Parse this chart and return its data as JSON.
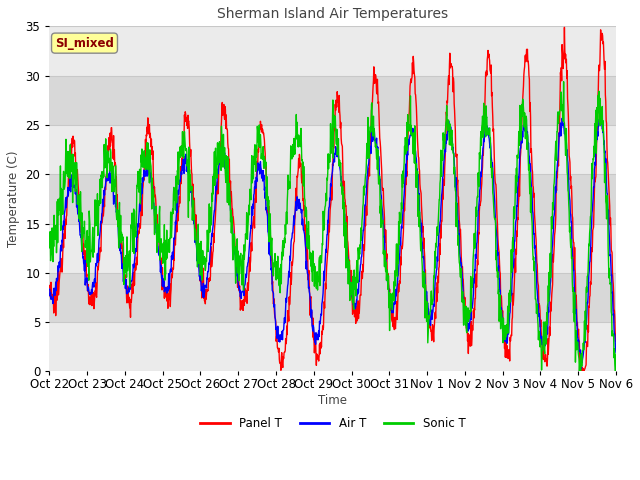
{
  "title": "Sherman Island Air Temperatures",
  "xlabel": "Time",
  "ylabel": "Temperature (C)",
  "ylim": [
    0,
    35
  ],
  "xlim": [
    0,
    360
  ],
  "background_color": "#ffffff",
  "plot_bg_light": "#f0f0f0",
  "plot_bg_dark": "#e0e0e0",
  "grid_color": "#d8d8d8",
  "x_tick_labels": [
    "Oct 22",
    "Oct 23",
    "Oct 24",
    "Oct 25",
    "Oct 26",
    "Oct 27",
    "Oct 28",
    "Oct 29",
    "Oct 30",
    "Oct 31",
    "Nov 1",
    "Nov 2",
    "Nov 3",
    "Nov 4",
    "Nov 5",
    "Nov 6"
  ],
  "x_tick_positions": [
    0,
    24,
    48,
    72,
    96,
    120,
    144,
    168,
    192,
    216,
    240,
    264,
    288,
    312,
    336,
    360
  ],
  "colors": {
    "panel": "#ff0000",
    "air": "#0000ff",
    "sonic": "#00cc00"
  },
  "legend_label": "SI_mixed",
  "legend_text_color": "#8b0000",
  "legend_bg_color": "#ffff99",
  "series_names": [
    "Panel T",
    "Air T",
    "Sonic T"
  ]
}
